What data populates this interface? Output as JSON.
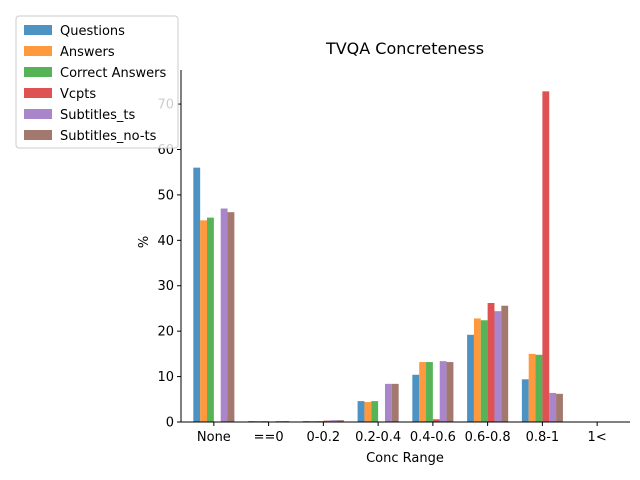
{
  "chart_data": {
    "type": "bar",
    "title": "TVQA Concreteness",
    "xlabel": "Conc Range",
    "ylabel": "%",
    "categories": [
      "None",
      "==0",
      "0-0.2",
      "0.2-0.4",
      "0.4-0.6",
      "0.6-0.8",
      "0.8-1",
      "1<"
    ],
    "ylim": [
      0,
      77.5
    ],
    "yticks": [
      0,
      10,
      20,
      30,
      40,
      50,
      60,
      70
    ],
    "grid": false,
    "legend_position": "upper-left-outside",
    "series": [
      {
        "name": "Questions",
        "color": "#1f77b4",
        "values": [
          56.0,
          0.2,
          0.2,
          4.6,
          10.4,
          19.2,
          9.4,
          0
        ]
      },
      {
        "name": "Answers",
        "color": "#ff7f0e",
        "values": [
          44.4,
          0.2,
          0.2,
          4.4,
          13.2,
          22.8,
          15.0,
          0
        ]
      },
      {
        "name": "Correct Answers",
        "color": "#2ca02c",
        "values": [
          45.0,
          0.2,
          0.2,
          4.6,
          13.2,
          22.4,
          14.8,
          0
        ]
      },
      {
        "name": "Vcpts",
        "color": "#d62728",
        "values": [
          0,
          0,
          0.3,
          0,
          0.6,
          26.2,
          72.8,
          0
        ]
      },
      {
        "name": "Subtitles_ts",
        "color": "#9467bd",
        "values": [
          47.0,
          0.2,
          0.4,
          8.4,
          13.4,
          24.4,
          6.4,
          0
        ]
      },
      {
        "name": "Subtitles_no-ts",
        "color": "#8c564b",
        "values": [
          46.2,
          0.2,
          0.4,
          8.4,
          13.2,
          25.6,
          6.2,
          0
        ]
      }
    ]
  }
}
